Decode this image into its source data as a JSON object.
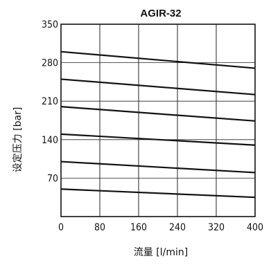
{
  "chart_data": {
    "type": "line",
    "title": "AGIR-32",
    "xlabel": "流量  [l/min]",
    "ylabel": "设定压力  [bar]",
    "xlim": [
      0,
      400
    ],
    "ylim": [
      0,
      350
    ],
    "x_ticks": [
      "0",
      "80",
      "160",
      "240",
      "320",
      "400"
    ],
    "y_ticks": [
      "70",
      "140",
      "210",
      "280",
      "350"
    ],
    "grid": true,
    "legend": "none",
    "series": [
      {
        "x": [
          0,
          400
        ],
        "y": [
          300,
          270
        ]
      },
      {
        "x": [
          0,
          400
        ],
        "y": [
          250,
          222
        ]
      },
      {
        "x": [
          0,
          400
        ],
        "y": [
          200,
          174
        ]
      },
      {
        "x": [
          0,
          400
        ],
        "y": [
          150,
          130
        ]
      },
      {
        "x": [
          0,
          400
        ],
        "y": [
          100,
          80
        ]
      },
      {
        "x": [
          0,
          400
        ],
        "y": [
          50,
          35
        ]
      }
    ]
  }
}
